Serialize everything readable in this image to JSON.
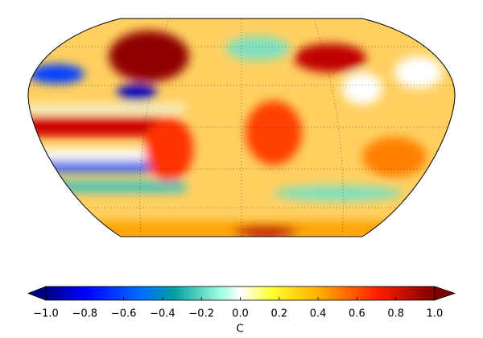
{
  "map": {
    "colorbar": {
      "label": "C",
      "lim": [
        -1,
        1
      ],
      "ticks": [
        {
          "value": -1,
          "label": "−1.0"
        },
        {
          "value": -0.8,
          "label": "−0.8"
        },
        {
          "value": -0.6,
          "label": "−0.6"
        },
        {
          "value": -0.4,
          "label": "−0.4"
        },
        {
          "value": -0.2,
          "label": "−0.2"
        },
        {
          "value": 0,
          "label": "0.0"
        },
        {
          "value": 0.2,
          "label": "0.2"
        },
        {
          "value": 0.4,
          "label": "0.4"
        },
        {
          "value": 0.6,
          "label": "0.6"
        },
        {
          "value": 0.8,
          "label": "0.8"
        },
        {
          "value": 1,
          "label": "1.0"
        }
      ]
    }
  }
}
